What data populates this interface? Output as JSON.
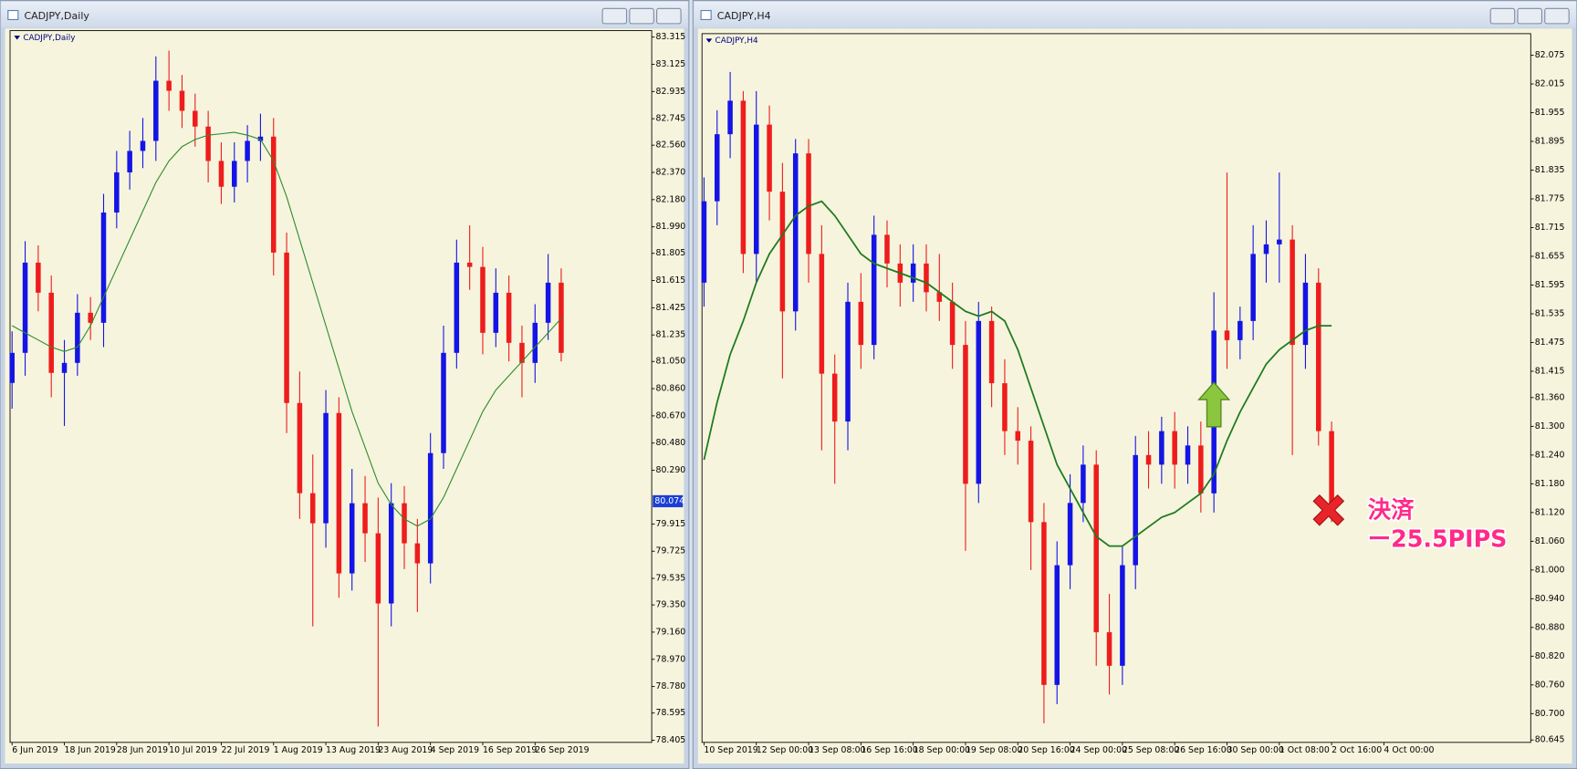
{
  "chart_data": [
    {
      "type": "candlestick",
      "title": "CADJPY,Daily",
      "categories": [
        "6 Jun 2019",
        null,
        null,
        null,
        "18 Jun 2019",
        null,
        null,
        null,
        "28 Jun 2019",
        null,
        null,
        null,
        "10 Jul 2019",
        null,
        null,
        null,
        "22 Jul 2019",
        null,
        null,
        null,
        "1 Aug 2019",
        null,
        null,
        null,
        "13 Aug 2019",
        null,
        null,
        null,
        "23 Aug 2019",
        null,
        null,
        null,
        "4 Sep 2019",
        null,
        null,
        null,
        "16 Sep 2019",
        null,
        null,
        null,
        "26 Sep 2019",
        null,
        null
      ],
      "open": [
        80.9,
        81.11,
        81.74,
        81.53,
        80.97,
        81.04,
        81.39,
        81.32,
        82.09,
        82.37,
        82.52,
        82.59,
        83.01,
        82.94,
        82.8,
        82.69,
        82.45,
        82.27,
        82.45,
        82.59,
        82.62,
        81.81,
        80.76,
        80.13,
        79.92,
        80.69,
        79.57,
        80.06,
        79.85,
        79.36,
        80.06,
        79.78,
        79.64,
        80.41,
        81.11,
        81.74,
        81.71,
        81.25,
        81.53,
        81.18,
        81.04,
        81.32,
        81.6
      ],
      "high": [
        81.26,
        81.89,
        81.86,
        81.65,
        81.2,
        81.52,
        81.5,
        82.22,
        82.52,
        82.66,
        82.75,
        83.18,
        83.22,
        83.05,
        82.92,
        82.8,
        82.58,
        82.58,
        82.7,
        82.78,
        82.75,
        81.95,
        80.98,
        80.4,
        80.85,
        80.8,
        80.3,
        80.25,
        80.1,
        80.2,
        80.18,
        79.95,
        80.55,
        81.3,
        81.9,
        82.0,
        81.85,
        81.7,
        81.65,
        81.3,
        81.45,
        81.8,
        81.7
      ],
      "low": [
        80.72,
        80.95,
        81.4,
        80.8,
        80.6,
        80.95,
        81.2,
        81.15,
        81.98,
        82.25,
        82.4,
        82.45,
        82.8,
        82.68,
        82.55,
        82.3,
        82.15,
        82.16,
        82.3,
        82.45,
        81.65,
        80.55,
        79.95,
        79.2,
        79.75,
        79.4,
        79.45,
        79.65,
        78.5,
        79.2,
        79.6,
        79.3,
        79.5,
        80.3,
        81.0,
        81.55,
        81.1,
        81.15,
        81.05,
        80.8,
        80.9,
        81.2,
        81.05
      ],
      "close": [
        81.11,
        81.74,
        81.53,
        80.97,
        81.04,
        81.39,
        81.32,
        82.09,
        82.37,
        82.52,
        82.59,
        83.01,
        82.94,
        82.8,
        82.69,
        82.45,
        82.27,
        82.45,
        82.59,
        82.62,
        81.81,
        80.76,
        80.13,
        79.92,
        80.69,
        79.57,
        80.06,
        79.85,
        79.36,
        80.06,
        79.78,
        79.64,
        80.41,
        81.11,
        81.74,
        81.71,
        81.25,
        81.53,
        81.18,
        81.04,
        81.32,
        81.6,
        81.11
      ],
      "ma": [
        81.3,
        81.25,
        81.2,
        81.15,
        81.12,
        81.15,
        81.3,
        81.5,
        81.7,
        81.9,
        82.1,
        82.3,
        82.45,
        82.55,
        82.6,
        82.63,
        82.64,
        82.65,
        82.63,
        82.6,
        82.45,
        82.2,
        81.9,
        81.6,
        81.3,
        81.0,
        80.7,
        80.45,
        80.2,
        80.05,
        79.95,
        79.9,
        79.95,
        80.1,
        80.3,
        80.5,
        80.7,
        80.85,
        80.95,
        81.05,
        81.15,
        81.25,
        81.35
      ],
      "up_color": "#1414e6",
      "down_color": "#ee1c1c",
      "ma_color": "#2e8b2e",
      "current_price": 80.074,
      "ylim": [
        78.39,
        83.36
      ],
      "yticks": [
        83.315,
        83.125,
        82.935,
        82.745,
        {
          "value": 82.56,
          "label": "82.560"
        },
        {
          "value": 82.37,
          "label": "82.370"
        },
        {
          "value": 82.18,
          "label": "82.180"
        },
        {
          "value": 81.99,
          "label": "81.990"
        },
        81.805,
        81.615,
        81.425,
        81.235,
        {
          "value": 81.05,
          "label": "81.050"
        },
        {
          "value": 80.86,
          "label": "80.860"
        },
        {
          "value": 80.67,
          "label": "80.670"
        },
        {
          "value": 80.48,
          "label": "80.480"
        },
        {
          "value": 80.29,
          "label": "80.290"
        },
        79.915,
        79.725,
        79.535,
        {
          "value": 79.35,
          "label": "79.350"
        },
        {
          "value": 79.16,
          "label": "79.160"
        },
        {
          "value": 78.97,
          "label": "78.970"
        },
        {
          "value": 78.78,
          "label": "78.780"
        },
        78.595,
        78.405
      ]
    },
    {
      "type": "candlestick",
      "title": "CADJPY,H4",
      "categories": [
        "10 Sep 2019",
        null,
        null,
        null,
        "12 Sep 00:00",
        null,
        null,
        null,
        "13 Sep 08:00",
        null,
        null,
        null,
        "16 Sep 16:00",
        null,
        null,
        null,
        "18 Sep 00:00",
        null,
        null,
        null,
        "19 Sep 08:00",
        null,
        null,
        null,
        "20 Sep 16:00",
        null,
        null,
        null,
        "24 Sep 00:00",
        null,
        null,
        null,
        "25 Sep 08:00",
        null,
        null,
        null,
        "26 Sep 16:00",
        null,
        null,
        null,
        "30 Sep 00:00",
        null,
        null,
        null,
        "1 Oct 08:00",
        null,
        null,
        null,
        "2 Oct 16:00",
        null,
        null,
        null,
        "4 Oct 00:00"
      ],
      "open": [
        81.6,
        81.77,
        81.91,
        81.98,
        81.66,
        81.93,
        81.79,
        81.54,
        81.87,
        81.66,
        81.41,
        81.31,
        81.56,
        81.47,
        81.7,
        81.64,
        81.6,
        81.64,
        81.58,
        81.56,
        81.47,
        81.18,
        81.52,
        81.39,
        81.29,
        81.27,
        81.1,
        80.76,
        81.01,
        81.14,
        81.22,
        80.87,
        80.8,
        81.01,
        81.24,
        81.22,
        81.29,
        81.22,
        81.26,
        81.16,
        81.5,
        81.48,
        81.52,
        81.66,
        81.68,
        81.69,
        81.47,
        81.6,
        81.29,
        null,
        null,
        null,
        null
      ],
      "high": [
        81.82,
        81.96,
        82.04,
        82.0,
        82.0,
        81.97,
        81.85,
        81.9,
        81.9,
        81.72,
        81.45,
        81.6,
        81.62,
        81.74,
        81.73,
        81.68,
        81.68,
        81.68,
        81.66,
        81.6,
        81.52,
        81.56,
        81.55,
        81.44,
        81.34,
        81.3,
        81.14,
        81.06,
        81.2,
        81.26,
        81.25,
        80.95,
        81.05,
        81.28,
        81.29,
        81.32,
        81.33,
        81.3,
        81.31,
        81.58,
        81.83,
        81.55,
        81.72,
        81.73,
        81.83,
        81.72,
        81.66,
        81.63,
        81.31,
        null,
        null,
        null,
        null
      ],
      "low": [
        81.55,
        81.72,
        81.86,
        81.62,
        81.6,
        81.73,
        81.4,
        81.5,
        81.6,
        81.25,
        81.18,
        81.25,
        81.42,
        81.44,
        81.59,
        81.55,
        81.56,
        81.54,
        81.52,
        81.42,
        81.04,
        81.14,
        81.34,
        81.24,
        81.22,
        81.0,
        80.68,
        80.72,
        80.96,
        81.1,
        80.8,
        80.74,
        80.76,
        80.96,
        81.17,
        81.18,
        81.17,
        81.18,
        81.12,
        81.12,
        81.42,
        81.44,
        81.48,
        81.6,
        81.6,
        81.24,
        81.42,
        81.26,
        81.1,
        null,
        null,
        null,
        null
      ],
      "close": [
        81.77,
        81.91,
        81.98,
        81.66,
        81.93,
        81.79,
        81.54,
        81.87,
        81.66,
        81.41,
        81.31,
        81.56,
        81.47,
        81.7,
        81.64,
        81.6,
        81.64,
        81.58,
        81.56,
        81.47,
        81.18,
        81.52,
        81.39,
        81.29,
        81.27,
        81.1,
        80.76,
        81.01,
        81.14,
        81.22,
        80.87,
        80.8,
        81.01,
        81.24,
        81.22,
        81.29,
        81.22,
        81.26,
        81.16,
        81.5,
        81.48,
        81.52,
        81.66,
        81.68,
        81.69,
        81.47,
        81.6,
        81.29,
        81.14,
        null,
        null,
        null,
        null
      ],
      "ma": [
        81.23,
        81.35,
        81.45,
        81.52,
        81.6,
        81.66,
        81.7,
        81.74,
        81.76,
        81.77,
        81.74,
        81.7,
        81.66,
        81.64,
        81.63,
        81.62,
        81.61,
        81.6,
        81.58,
        81.56,
        81.54,
        81.53,
        81.54,
        81.52,
        81.46,
        81.38,
        81.3,
        81.22,
        81.17,
        81.12,
        81.07,
        81.05,
        81.05,
        81.07,
        81.09,
        81.11,
        81.12,
        81.14,
        81.16,
        81.2,
        81.27,
        81.33,
        81.38,
        81.43,
        81.46,
        81.48,
        81.5,
        81.51,
        81.51,
        null,
        null,
        null,
        null
      ],
      "up_color": "#1414e6",
      "down_color": "#ee1c1c",
      "ma_color": "#1f7a1f",
      "annotations": [
        "決済",
        "ー25.5PIPS"
      ],
      "ylim": [
        80.64,
        82.12
      ],
      "yticks": [
        82.075,
        82.015,
        81.955,
        81.895,
        81.835,
        81.775,
        81.715,
        81.655,
        81.595,
        81.535,
        81.475,
        81.415,
        {
          "value": 81.36,
          "label": "81.360"
        },
        {
          "value": 81.3,
          "label": "81.300"
        },
        {
          "value": 81.24,
          "label": "81.240"
        },
        {
          "value": 81.18,
          "label": "81.180"
        },
        {
          "value": 81.12,
          "label": "81.120"
        },
        {
          "value": 81.06,
          "label": "81.060"
        },
        {
          "value": 81,
          "label": "81.000"
        },
        {
          "value": 80.94,
          "label": "80.940"
        },
        {
          "value": 80.88,
          "label": "80.880"
        },
        {
          "value": 80.82,
          "label": "80.820"
        },
        {
          "value": 80.76,
          "label": "80.760"
        },
        {
          "value": 80.7,
          "label": "80.700"
        },
        80.645
      ]
    }
  ]
}
